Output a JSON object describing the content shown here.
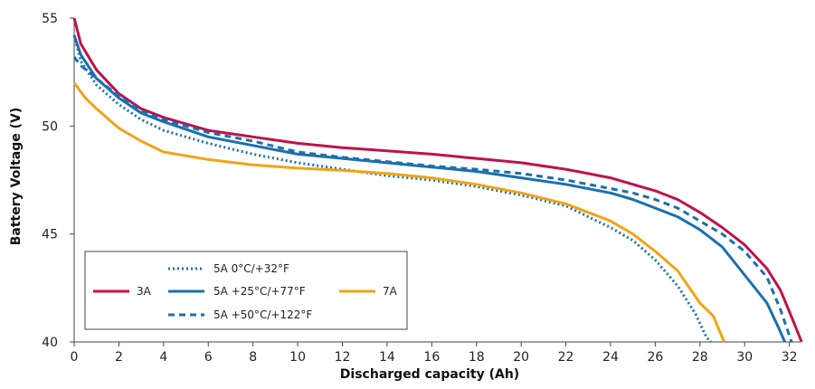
{
  "chart_data": {
    "type": "line",
    "xlabel": "Discharged capacity (Ah)",
    "ylabel": "Battery Voltage (V)",
    "xlim": [
      0,
      32.5
    ],
    "ylim": [
      40,
      55
    ],
    "x_ticks": [
      0,
      2,
      4,
      6,
      8,
      10,
      12,
      14,
      16,
      18,
      20,
      22,
      24,
      26,
      28,
      30,
      32
    ],
    "y_ticks": [
      40,
      45,
      50,
      55
    ],
    "series": [
      {
        "name": "3A",
        "color": "#c0124a",
        "dash": "solid",
        "points": [
          [
            0,
            55
          ],
          [
            0.3,
            53.8
          ],
          [
            1,
            52.6
          ],
          [
            2,
            51.5
          ],
          [
            3,
            50.8
          ],
          [
            4,
            50.4
          ],
          [
            6,
            49.8
          ],
          [
            8,
            49.5
          ],
          [
            10,
            49.2
          ],
          [
            12,
            49.0
          ],
          [
            14,
            48.85
          ],
          [
            16,
            48.7
          ],
          [
            18,
            48.5
          ],
          [
            20,
            48.3
          ],
          [
            22,
            48.0
          ],
          [
            24,
            47.6
          ],
          [
            25,
            47.3
          ],
          [
            26,
            47.0
          ],
          [
            27,
            46.6
          ],
          [
            28,
            46.0
          ],
          [
            29,
            45.3
          ],
          [
            30,
            44.5
          ],
          [
            31,
            43.4
          ],
          [
            31.6,
            42.4
          ],
          [
            32.2,
            40.9
          ],
          [
            32.55,
            40
          ]
        ]
      },
      {
        "name": "5A  0°C/+32°F",
        "color": "#1a6fb0",
        "dash": "dotted",
        "points": [
          [
            0,
            54.2
          ],
          [
            0.3,
            53.0
          ],
          [
            1,
            51.9
          ],
          [
            2,
            51.0
          ],
          [
            3,
            50.3
          ],
          [
            4,
            49.8
          ],
          [
            6,
            49.2
          ],
          [
            8,
            48.7
          ],
          [
            10,
            48.3
          ],
          [
            12,
            48.0
          ],
          [
            14,
            47.7
          ],
          [
            16,
            47.5
          ],
          [
            18,
            47.2
          ],
          [
            20,
            46.8
          ],
          [
            22,
            46.3
          ],
          [
            23,
            45.8
          ],
          [
            24,
            45.3
          ],
          [
            25,
            44.7
          ],
          [
            26,
            43.8
          ],
          [
            27,
            42.6
          ],
          [
            27.8,
            41.3
          ],
          [
            28.3,
            40.2
          ],
          [
            28.5,
            40
          ]
        ]
      },
      {
        "name": "5A +25°C/+77°F",
        "color": "#1a6fb0",
        "dash": "solid",
        "points": [
          [
            0,
            54.2
          ],
          [
            0.3,
            53.3
          ],
          [
            1,
            52.2
          ],
          [
            2,
            51.3
          ],
          [
            3,
            50.6
          ],
          [
            4,
            50.2
          ],
          [
            6,
            49.5
          ],
          [
            8,
            49.1
          ],
          [
            10,
            48.7
          ],
          [
            12,
            48.5
          ],
          [
            14,
            48.3
          ],
          [
            16,
            48.1
          ],
          [
            18,
            47.9
          ],
          [
            20,
            47.6
          ],
          [
            22,
            47.3
          ],
          [
            24,
            46.9
          ],
          [
            25,
            46.6
          ],
          [
            26,
            46.2
          ],
          [
            27,
            45.8
          ],
          [
            28,
            45.2
          ],
          [
            29,
            44.4
          ],
          [
            30,
            43.1
          ],
          [
            31,
            41.8
          ],
          [
            31.5,
            40.7
          ],
          [
            31.8,
            40
          ]
        ]
      },
      {
        "name": "5A +50°C/+122°F",
        "color": "#1a6fb0",
        "dash": "dashed",
        "points": [
          [
            0,
            53.2
          ],
          [
            0.3,
            52.8
          ],
          [
            1,
            52.2
          ],
          [
            2,
            51.4
          ],
          [
            3,
            50.7
          ],
          [
            4,
            50.3
          ],
          [
            6,
            49.7
          ],
          [
            8,
            49.3
          ],
          [
            10,
            48.8
          ],
          [
            12,
            48.55
          ],
          [
            14,
            48.35
          ],
          [
            16,
            48.15
          ],
          [
            18,
            48.0
          ],
          [
            20,
            47.8
          ],
          [
            22,
            47.5
          ],
          [
            24,
            47.1
          ],
          [
            25,
            46.9
          ],
          [
            26,
            46.6
          ],
          [
            27,
            46.2
          ],
          [
            28,
            45.6
          ],
          [
            29,
            45.0
          ],
          [
            30,
            44.2
          ],
          [
            31,
            43.0
          ],
          [
            31.6,
            41.5
          ],
          [
            32.1,
            40
          ]
        ]
      },
      {
        "name": "7A",
        "color": "#f0a416",
        "dash": "solid",
        "points": [
          [
            0,
            52
          ],
          [
            0.5,
            51.3
          ],
          [
            1,
            50.8
          ],
          [
            2,
            49.9
          ],
          [
            3,
            49.3
          ],
          [
            4,
            48.8
          ],
          [
            6,
            48.45
          ],
          [
            8,
            48.2
          ],
          [
            10,
            48.05
          ],
          [
            12,
            47.95
          ],
          [
            14,
            47.8
          ],
          [
            16,
            47.6
          ],
          [
            18,
            47.3
          ],
          [
            20,
            46.9
          ],
          [
            22,
            46.4
          ],
          [
            24,
            45.6
          ],
          [
            25,
            45.0
          ],
          [
            26,
            44.2
          ],
          [
            27,
            43.3
          ],
          [
            28,
            41.8
          ],
          [
            28.6,
            41.2
          ],
          [
            29,
            40.2
          ],
          [
            29.1,
            40
          ]
        ]
      }
    ],
    "legend": {
      "position": "bottom-left",
      "entries": [
        {
          "label": "3A",
          "color": "#c0124a",
          "dash": "solid"
        },
        {
          "label": "5A  0°C/+32°F",
          "color": "#1a6fb0",
          "dash": "dotted"
        },
        {
          "label": "5A +25°C/+77°F",
          "color": "#1a6fb0",
          "dash": "solid"
        },
        {
          "label": "5A +50°C/+122°F",
          "color": "#1a6fb0",
          "dash": "dashed"
        },
        {
          "label": "7A",
          "color": "#f0a416",
          "dash": "solid"
        }
      ]
    }
  }
}
